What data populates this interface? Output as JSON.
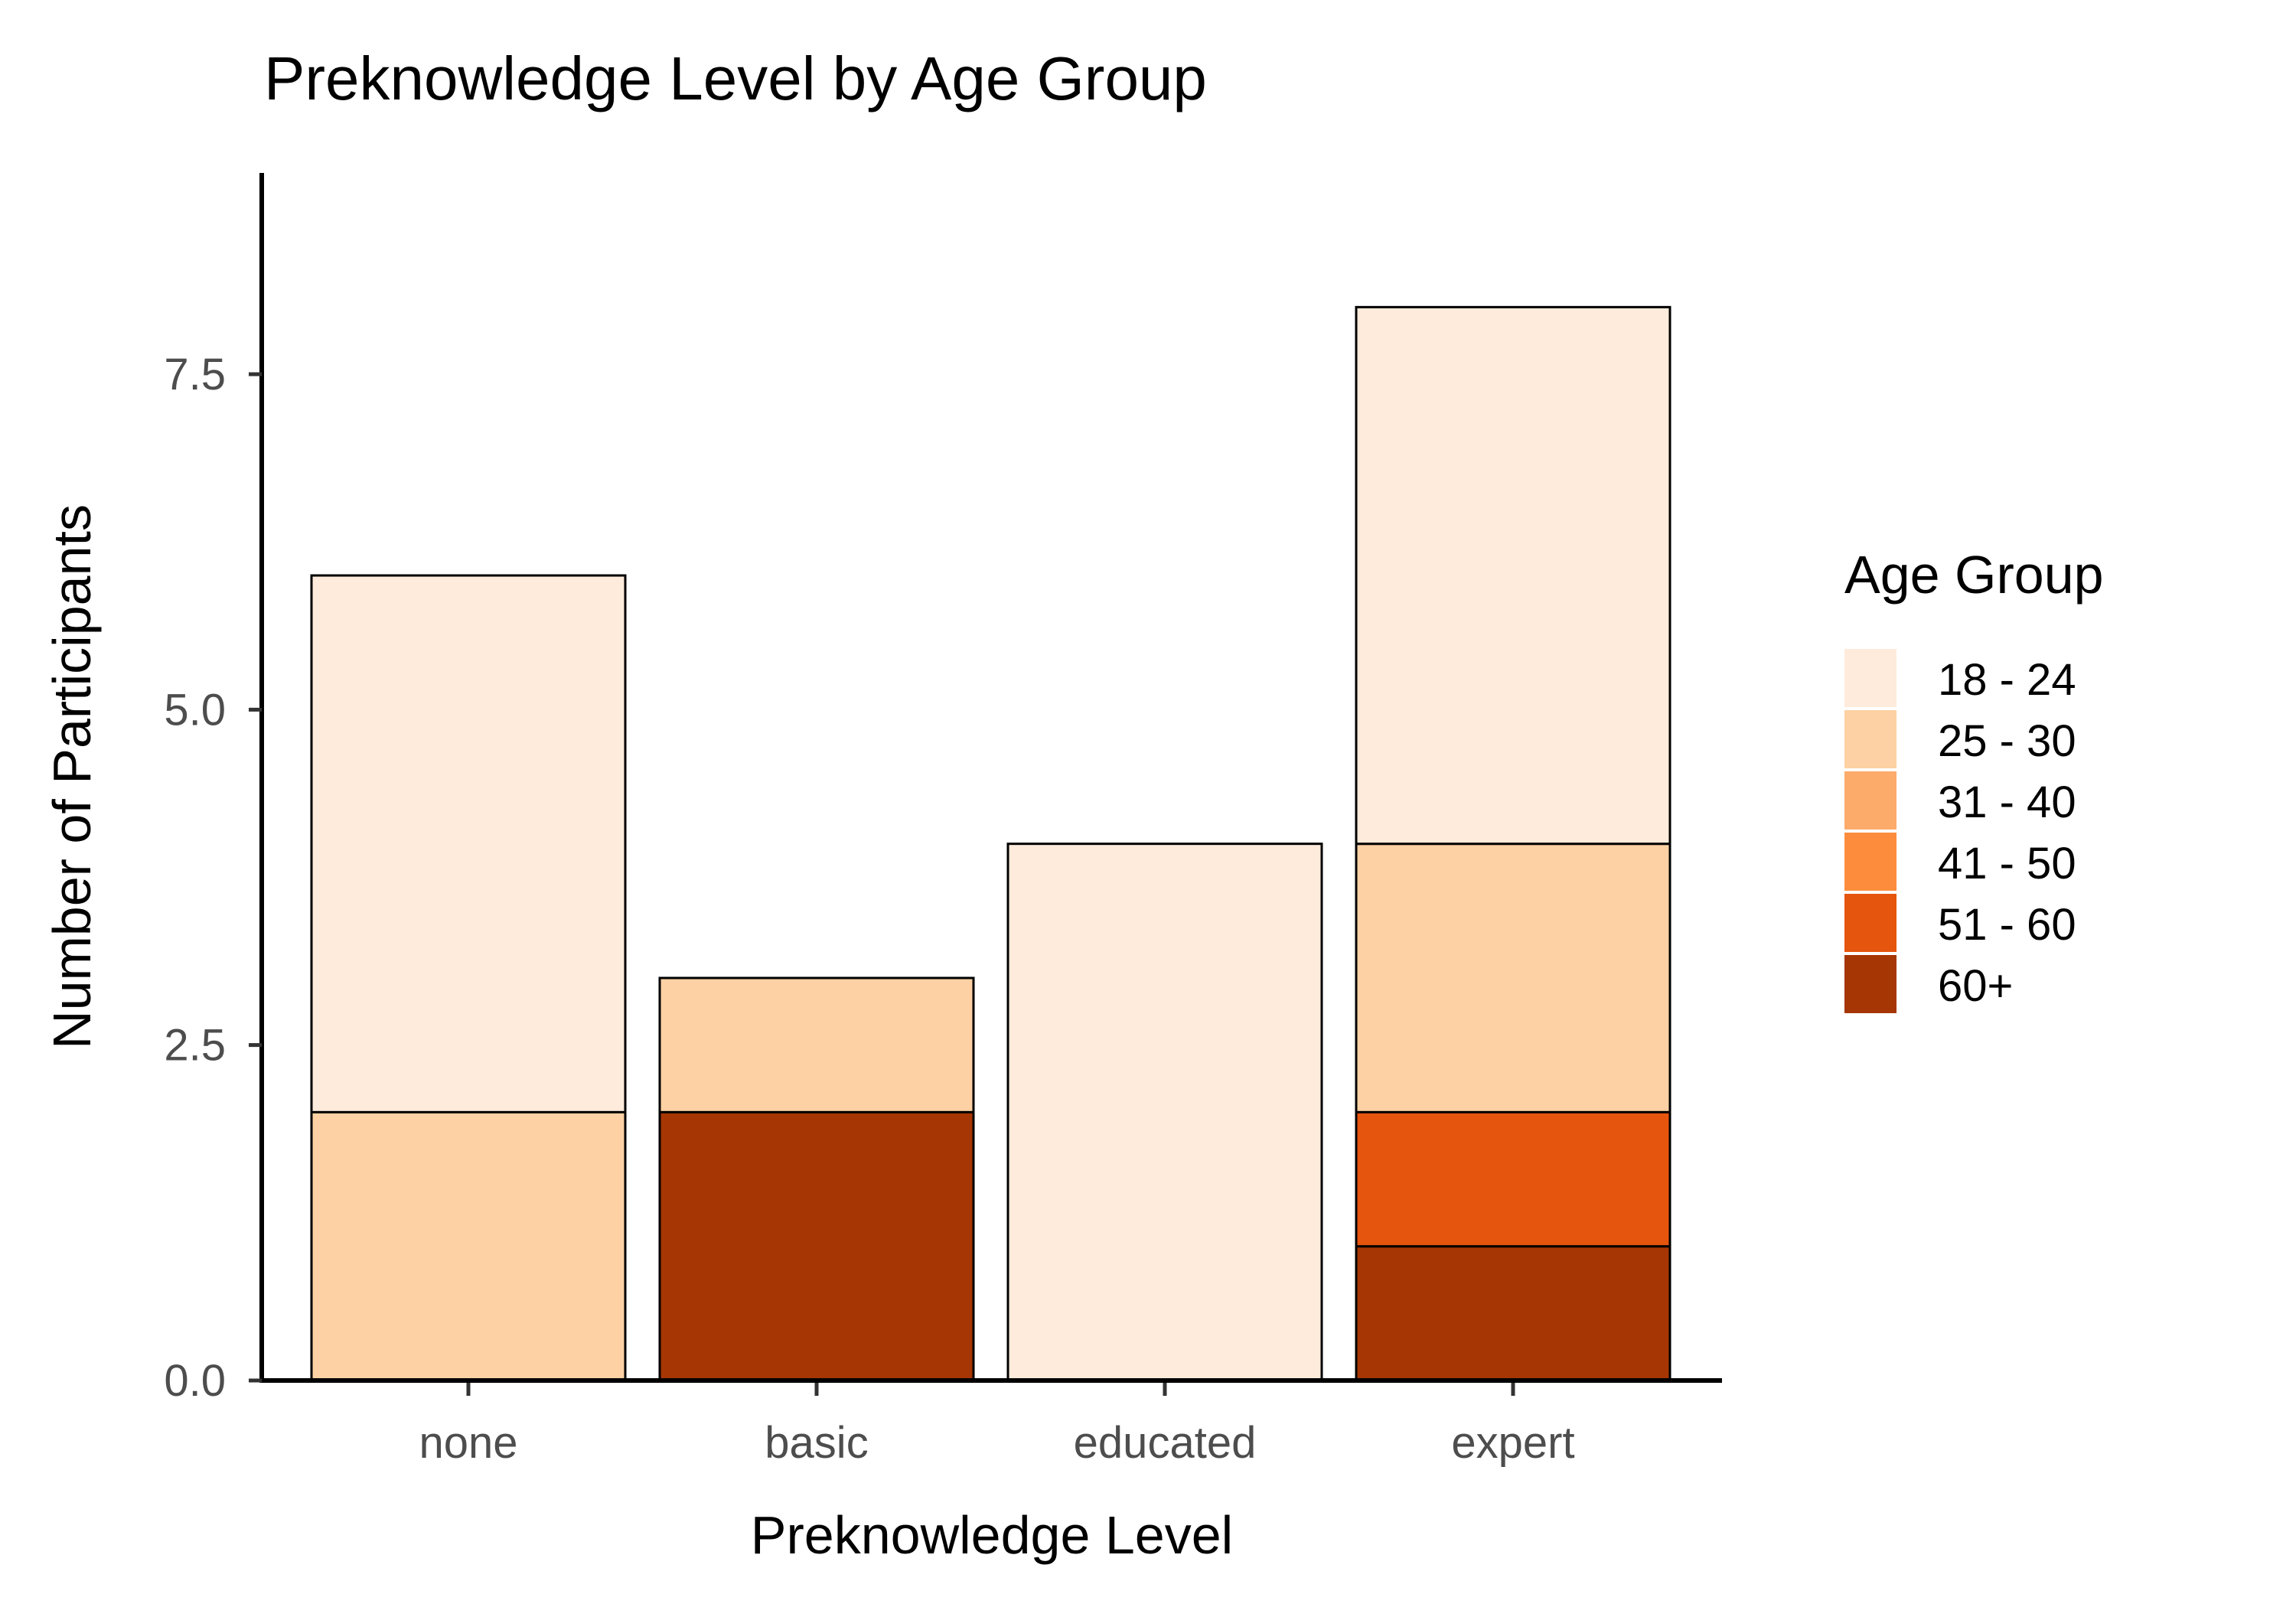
{
  "chart_data": {
    "type": "bar",
    "stacked": true,
    "title": "Preknowledge Level by Age Group",
    "xlabel": "Preknowledge Level",
    "ylabel": "Number of Participants",
    "categories": [
      "none",
      "basic",
      "educated",
      "expert"
    ],
    "ylim": [
      0,
      9
    ],
    "yticks": [
      0,
      2.5,
      5,
      7.5
    ],
    "ytick_labels": [
      "0.0",
      "2.5",
      "5.0",
      "7.5"
    ],
    "grid": false,
    "legend": {
      "title": "Age Group",
      "position": "right"
    },
    "series": [
      {
        "name": "18 - 24",
        "color": "#FEEBDB",
        "values": [
          4,
          0,
          4,
          4
        ]
      },
      {
        "name": "25 - 30",
        "color": "#FDD1A3",
        "values": [
          2,
          1,
          0,
          2
        ]
      },
      {
        "name": "31 - 40",
        "color": "#FDAB6B",
        "values": [
          0,
          0,
          0,
          0
        ]
      },
      {
        "name": "41 - 50",
        "color": "#FD8D3C",
        "values": [
          0,
          0,
          0,
          0
        ]
      },
      {
        "name": "51 - 60",
        "color": "#E6550D",
        "values": [
          0,
          0,
          0,
          1
        ]
      },
      {
        "name": "60+",
        "color": "#A63603",
        "values": [
          0,
          2,
          0,
          1
        ]
      }
    ]
  }
}
